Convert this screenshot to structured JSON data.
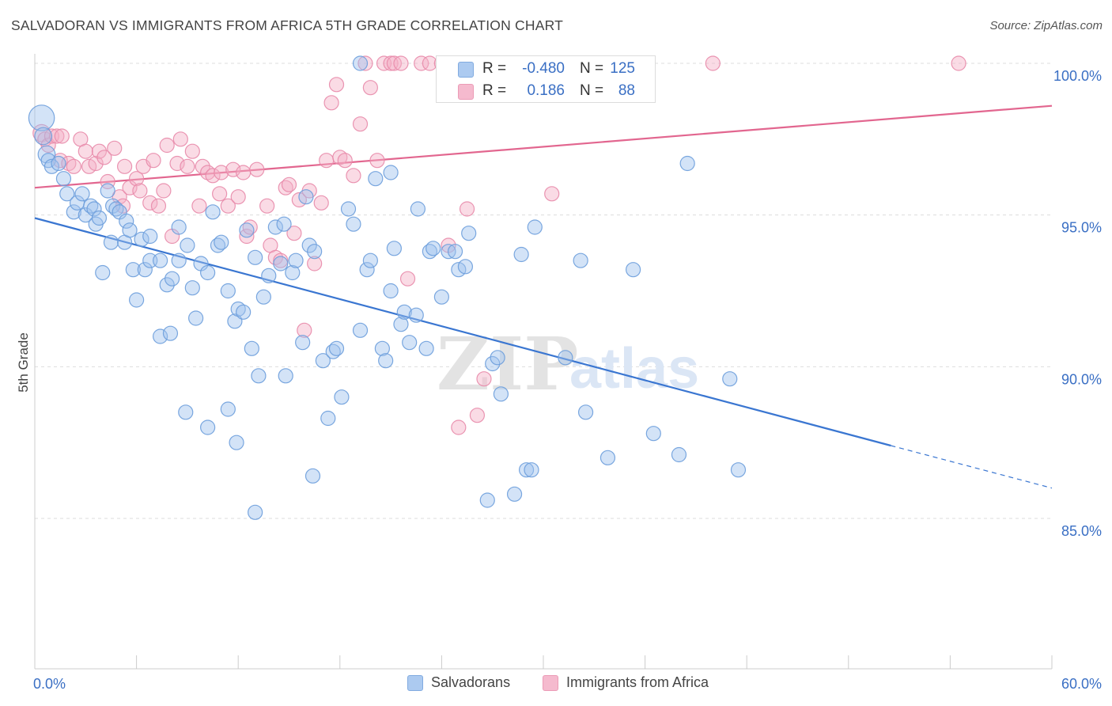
{
  "title": "SALVADORAN VS IMMIGRANTS FROM AFRICA 5TH GRADE CORRELATION CHART",
  "source": "Source: ZipAtlas.com",
  "watermark": {
    "zip": "ZIP",
    "atlas": "atlas"
  },
  "stats": [
    {
      "swatch_color": "#9ec1ee",
      "r_label": "R =",
      "r_value": "-0.480",
      "n_label": "N =",
      "n_value": "125"
    },
    {
      "swatch_color": "#f4afc6",
      "r_label": "R =",
      "r_value": "0.186",
      "n_label": "N =",
      "n_value": "88"
    }
  ],
  "legend": [
    {
      "label": "Salvadorans",
      "color": "#9ec1ee"
    },
    {
      "label": "Immigrants from Africa",
      "color": "#f4afc6"
    }
  ],
  "chart_data": {
    "type": "scatter",
    "ylabel": "5th Grade",
    "xlim": [
      0,
      60
    ],
    "ylim": [
      80.5,
      100.5
    ],
    "x_tick_labels": [
      {
        "x": 0,
        "label": "0.0%"
      },
      {
        "x": 60,
        "label": "60.0%"
      }
    ],
    "y_ticks": [
      {
        "y": 100,
        "label": "100.0%"
      },
      {
        "y": 95,
        "label": "95.0%"
      },
      {
        "y": 90,
        "label": "90.0%"
      },
      {
        "y": 85,
        "label": "85.0%"
      }
    ],
    "grid": true,
    "colors": {
      "blue_fill": "#9ec1ee",
      "blue_stroke": "#6c9ddb",
      "blue_line": "#3a76d1",
      "pink_fill": "#f4afc6",
      "pink_stroke": "#e88aaa",
      "pink_line": "#e2668f",
      "axis_label": "#3a6fc4"
    },
    "series": [
      {
        "name": "Salvadorans",
        "trend": {
          "x0": 0,
          "y0": 94.9,
          "x1": 50.5,
          "y1": 87.4,
          "x_dash_end": 60,
          "y_dash_end": 86.0
        },
        "points": [
          [
            0.4,
            98.2,
            1.8
          ],
          [
            0.5,
            97.6,
            1.2
          ],
          [
            0.7,
            97.0,
            1.2
          ],
          [
            0.8,
            96.8,
            1.0
          ],
          [
            1.0,
            96.6,
            1.0
          ],
          [
            1.4,
            96.7,
            1.0
          ],
          [
            1.7,
            96.2,
            1.0
          ],
          [
            1.9,
            95.7,
            1.0
          ],
          [
            2.3,
            95.1,
            1.0
          ],
          [
            2.5,
            95.4,
            1.0
          ],
          [
            2.8,
            95.7,
            1.0
          ],
          [
            3.0,
            95.0,
            1.0
          ],
          [
            3.3,
            95.3,
            1.0
          ],
          [
            3.5,
            95.2,
            1.0
          ],
          [
            3.6,
            94.7,
            1.0
          ],
          [
            3.8,
            94.9,
            1.0
          ],
          [
            4.3,
            95.8,
            1.0
          ],
          [
            4.5,
            94.1,
            1.0
          ],
          [
            4.6,
            95.3,
            1.0
          ],
          [
            4.8,
            95.2,
            1.0
          ],
          [
            5.0,
            95.1,
            1.0
          ],
          [
            5.3,
            94.1,
            1.0
          ],
          [
            5.4,
            94.8,
            1.0
          ],
          [
            5.6,
            94.5,
            1.0
          ],
          [
            4.0,
            93.1,
            1.0
          ],
          [
            5.8,
            93.2,
            1.0
          ],
          [
            6.3,
            94.2,
            1.0
          ],
          [
            6.5,
            93.2,
            1.0
          ],
          [
            6.8,
            94.3,
            1.0
          ],
          [
            6.8,
            93.5,
            1.0
          ],
          [
            6.0,
            92.2,
            1.0
          ],
          [
            7.4,
            93.5,
            1.0
          ],
          [
            7.8,
            92.7,
            1.0
          ],
          [
            8.1,
            92.9,
            1.0
          ],
          [
            8.5,
            94.6,
            1.0
          ],
          [
            8.5,
            93.5,
            1.0
          ],
          [
            9.0,
            94.0,
            1.0
          ],
          [
            9.3,
            92.6,
            1.0
          ],
          [
            9.5,
            91.6,
            1.0
          ],
          [
            9.8,
            93.4,
            1.0
          ],
          [
            10.2,
            93.1,
            1.0
          ],
          [
            10.5,
            95.1,
            1.0
          ],
          [
            10.8,
            94.0,
            1.0
          ],
          [
            11.0,
            94.1,
            1.0
          ],
          [
            11.4,
            92.5,
            1.0
          ],
          [
            11.8,
            91.5,
            1.0
          ],
          [
            12.0,
            91.9,
            1.0
          ],
          [
            12.3,
            91.8,
            1.0
          ],
          [
            12.5,
            94.5,
            1.0
          ],
          [
            12.8,
            90.6,
            1.0
          ],
          [
            13.0,
            93.6,
            1.0
          ],
          [
            13.2,
            89.7,
            1.0
          ],
          [
            13.5,
            92.3,
            1.0
          ],
          [
            13.8,
            93.0,
            1.0
          ],
          [
            14.2,
            94.6,
            1.0
          ],
          [
            14.5,
            93.4,
            1.0
          ],
          [
            14.7,
            94.7,
            1.0
          ],
          [
            14.8,
            89.7,
            1.0
          ],
          [
            15.2,
            93.1,
            1.0
          ],
          [
            15.4,
            93.5,
            1.0
          ],
          [
            15.8,
            90.8,
            1.0
          ],
          [
            16.0,
            95.6,
            1.0
          ],
          [
            16.2,
            94.0,
            1.0
          ],
          [
            16.5,
            93.8,
            1.0
          ],
          [
            17.0,
            90.2,
            1.0
          ],
          [
            17.3,
            88.3,
            1.0
          ],
          [
            17.6,
            90.5,
            1.0
          ],
          [
            17.8,
            90.6,
            1.0
          ],
          [
            18.1,
            89.0,
            1.0
          ],
          [
            18.5,
            95.2,
            1.0
          ],
          [
            18.8,
            94.7,
            1.0
          ],
          [
            19.2,
            91.2,
            1.0
          ],
          [
            19.6,
            93.2,
            1.0
          ],
          [
            19.8,
            93.5,
            1.0
          ],
          [
            20.1,
            96.2,
            1.0
          ],
          [
            20.5,
            90.6,
            1.0
          ],
          [
            20.7,
            90.2,
            1.0
          ],
          [
            21.0,
            96.4,
            1.0
          ],
          [
            21.0,
            92.5,
            1.0
          ],
          [
            21.2,
            93.9,
            1.0
          ],
          [
            21.6,
            91.4,
            1.0
          ],
          [
            21.8,
            91.8,
            1.0
          ],
          [
            22.1,
            90.8,
            1.0
          ],
          [
            22.5,
            91.7,
            1.0
          ],
          [
            22.6,
            95.2,
            1.0
          ],
          [
            23.1,
            90.6,
            1.0
          ],
          [
            23.3,
            93.8,
            1.0
          ],
          [
            23.5,
            93.9,
            1.0
          ],
          [
            24.4,
            93.8,
            1.0
          ],
          [
            24.0,
            92.3,
            1.0
          ],
          [
            24.8,
            93.8,
            1.0
          ],
          [
            25.0,
            93.2,
            1.0
          ],
          [
            25.4,
            93.3,
            1.0
          ],
          [
            25.6,
            94.4,
            1.0
          ],
          [
            26.7,
            85.6,
            1.0
          ],
          [
            27.0,
            90.1,
            1.0
          ],
          [
            27.3,
            90.3,
            1.0
          ],
          [
            27.5,
            89.1,
            1.0
          ],
          [
            28.3,
            85.8,
            1.0
          ],
          [
            28.7,
            93.7,
            1.0
          ],
          [
            29.0,
            86.6,
            1.0
          ],
          [
            29.3,
            86.6,
            1.0
          ],
          [
            29.5,
            94.6,
            1.0
          ],
          [
            31.3,
            90.3,
            1.0
          ],
          [
            32.2,
            93.5,
            1.0
          ],
          [
            32.5,
            88.5,
            1.0
          ],
          [
            33.8,
            87.0,
            1.0
          ],
          [
            35.3,
            93.2,
            1.0
          ],
          [
            36.5,
            87.8,
            1.0
          ],
          [
            38.0,
            87.1,
            1.0
          ],
          [
            38.5,
            96.7,
            1.0
          ],
          [
            41.0,
            89.6,
            1.0
          ],
          [
            41.5,
            86.6,
            1.0
          ],
          [
            8.9,
            88.5,
            1.0
          ],
          [
            10.2,
            88.0,
            1.0
          ],
          [
            11.4,
            88.6,
            1.0
          ],
          [
            11.9,
            87.5,
            1.0
          ],
          [
            13.0,
            85.2,
            1.0
          ],
          [
            16.4,
            86.4,
            1.0
          ],
          [
            7.4,
            91.0,
            1.0
          ],
          [
            8.0,
            91.1,
            1.0
          ],
          [
            19.2,
            100.0,
            1.0
          ]
        ]
      },
      {
        "name": "Immigrants from Africa",
        "trend": {
          "x0": 0,
          "y0": 95.9,
          "x1": 60,
          "y1": 98.6
        },
        "points": [
          [
            0.4,
            97.7,
            1.2
          ],
          [
            0.6,
            97.5,
            1.0
          ],
          [
            0.8,
            97.3,
            1.0
          ],
          [
            1.0,
            97.6,
            1.0
          ],
          [
            1.3,
            97.6,
            1.0
          ],
          [
            1.5,
            96.8,
            1.0
          ],
          [
            1.6,
            97.6,
            1.0
          ],
          [
            2.0,
            96.7,
            1.0
          ],
          [
            2.3,
            96.6,
            1.0
          ],
          [
            2.7,
            97.5,
            1.0
          ],
          [
            3.0,
            97.1,
            1.0
          ],
          [
            3.2,
            96.6,
            1.0
          ],
          [
            3.6,
            96.7,
            1.0
          ],
          [
            3.8,
            97.1,
            1.0
          ],
          [
            4.1,
            96.9,
            1.0
          ],
          [
            4.3,
            96.1,
            1.0
          ],
          [
            4.7,
            97.2,
            1.0
          ],
          [
            5.0,
            95.6,
            1.0
          ],
          [
            5.2,
            95.3,
            1.0
          ],
          [
            5.3,
            96.6,
            1.0
          ],
          [
            5.6,
            95.9,
            1.0
          ],
          [
            6.0,
            96.2,
            1.0
          ],
          [
            6.2,
            95.8,
            1.0
          ],
          [
            6.4,
            96.6,
            1.0
          ],
          [
            6.8,
            95.4,
            1.0
          ],
          [
            7.0,
            96.8,
            1.0
          ],
          [
            7.3,
            95.3,
            1.0
          ],
          [
            7.6,
            95.8,
            1.0
          ],
          [
            7.8,
            97.3,
            1.0
          ],
          [
            8.1,
            94.3,
            1.0
          ],
          [
            8.4,
            96.7,
            1.0
          ],
          [
            8.6,
            97.5,
            1.0
          ],
          [
            9.0,
            96.6,
            1.0
          ],
          [
            9.3,
            97.1,
            1.0
          ],
          [
            9.7,
            95.3,
            1.0
          ],
          [
            9.9,
            96.6,
            1.0
          ],
          [
            10.2,
            96.4,
            1.0
          ],
          [
            10.5,
            96.3,
            1.0
          ],
          [
            10.9,
            95.7,
            1.0
          ],
          [
            11.0,
            96.4,
            1.0
          ],
          [
            11.4,
            95.3,
            1.0
          ],
          [
            11.7,
            96.5,
            1.0
          ],
          [
            12.0,
            95.6,
            1.0
          ],
          [
            12.3,
            96.4,
            1.0
          ],
          [
            12.5,
            94.3,
            1.0
          ],
          [
            12.7,
            94.6,
            1.0
          ],
          [
            13.1,
            96.5,
            1.0
          ],
          [
            13.7,
            95.3,
            1.0
          ],
          [
            13.9,
            94.0,
            1.0
          ],
          [
            14.2,
            93.6,
            1.0
          ],
          [
            14.5,
            93.5,
            1.0
          ],
          [
            14.8,
            95.9,
            1.0
          ],
          [
            15.0,
            96.0,
            1.0
          ],
          [
            15.3,
            94.4,
            1.0
          ],
          [
            15.6,
            95.5,
            1.0
          ],
          [
            15.9,
            91.2,
            1.0
          ],
          [
            16.2,
            95.8,
            1.0
          ],
          [
            16.5,
            93.4,
            1.0
          ],
          [
            16.9,
            95.4,
            1.0
          ],
          [
            17.2,
            96.8,
            1.0
          ],
          [
            17.5,
            98.7,
            1.0
          ],
          [
            17.8,
            99.3,
            1.0
          ],
          [
            18.0,
            96.9,
            1.0
          ],
          [
            18.3,
            96.8,
            1.0
          ],
          [
            18.8,
            96.3,
            1.0
          ],
          [
            19.2,
            98.0,
            1.0
          ],
          [
            19.5,
            100.0,
            1.0
          ],
          [
            19.8,
            99.2,
            1.0
          ],
          [
            20.2,
            96.8,
            1.0
          ],
          [
            20.6,
            100.0,
            1.0
          ],
          [
            21.0,
            100.0,
            1.0
          ],
          [
            21.2,
            100.0,
            1.0
          ],
          [
            21.6,
            100.0,
            1.0
          ],
          [
            22.0,
            92.9,
            1.0
          ],
          [
            22.8,
            100.0,
            1.0
          ],
          [
            23.3,
            100.0,
            1.0
          ],
          [
            24.0,
            100.0,
            1.0
          ],
          [
            24.4,
            94.0,
            1.0
          ],
          [
            25.0,
            88.0,
            1.0
          ],
          [
            25.5,
            95.2,
            1.0
          ],
          [
            26.1,
            88.4,
            1.0
          ],
          [
            26.5,
            89.6,
            1.0
          ],
          [
            27.8,
            100.0,
            1.0
          ],
          [
            29.0,
            100.0,
            1.0
          ],
          [
            29.5,
            100.0,
            1.0
          ],
          [
            30.0,
            100.0,
            1.0
          ],
          [
            30.5,
            95.7,
            1.0
          ],
          [
            32.0,
            100.0,
            1.0
          ],
          [
            40.0,
            100.0,
            1.0
          ],
          [
            54.5,
            100.0,
            1.0
          ]
        ]
      }
    ]
  }
}
